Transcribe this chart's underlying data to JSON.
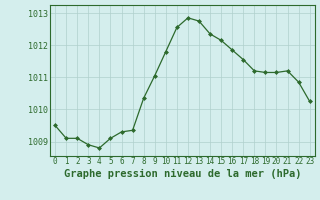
{
  "x": [
    0,
    1,
    2,
    3,
    4,
    5,
    6,
    7,
    8,
    9,
    10,
    11,
    12,
    13,
    14,
    15,
    16,
    17,
    18,
    19,
    20,
    21,
    22,
    23
  ],
  "y": [
    1009.5,
    1009.1,
    1009.1,
    1008.9,
    1008.8,
    1009.1,
    1009.3,
    1009.35,
    1010.35,
    1011.05,
    1011.8,
    1012.55,
    1012.85,
    1012.75,
    1012.35,
    1012.15,
    1011.85,
    1011.55,
    1011.2,
    1011.15,
    1011.15,
    1011.2,
    1010.85,
    1010.25
  ],
  "line_color": "#2d6a2d",
  "marker_color": "#2d6a2d",
  "background_color": "#d4eeed",
  "grid_color": "#b0d0cc",
  "border_color": "#2d6a2d",
  "title": "Graphe pression niveau de la mer (hPa)",
  "title_color": "#2d6a2d",
  "ylabel_ticks": [
    1009,
    1010,
    1011,
    1012,
    1013
  ],
  "ylim": [
    1008.55,
    1013.25
  ],
  "xlim": [
    -0.5,
    23.5
  ],
  "xlabel_fontsize": 7.5,
  "tick_fontsize": 5.5,
  "ytick_fontsize": 6.0
}
